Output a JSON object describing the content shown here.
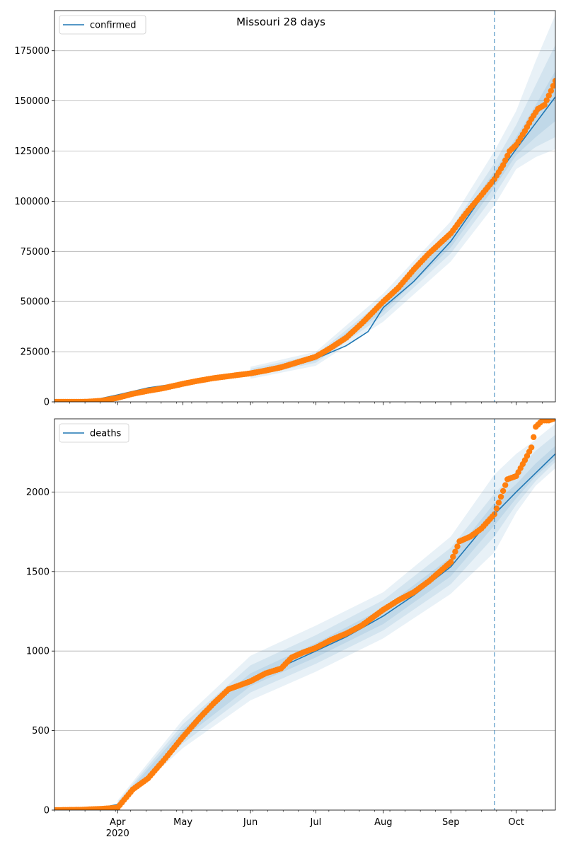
{
  "title": "Missouri 28 days",
  "colors": {
    "model_line": "#1f77b4",
    "observed": "#ff7f0e",
    "band": "#1f77b4",
    "grid": "#b0b0b0",
    "forecast_line": "#1f77b4"
  },
  "x_ticks": [
    {
      "date": "2020-04-01",
      "label": "Apr",
      "sub": "2020"
    },
    {
      "date": "2020-05-01",
      "label": "May",
      "sub": ""
    },
    {
      "date": "2020-06-01",
      "label": "Jun",
      "sub": ""
    },
    {
      "date": "2020-07-01",
      "label": "Jul",
      "sub": ""
    },
    {
      "date": "2020-08-01",
      "label": "Aug",
      "sub": ""
    },
    {
      "date": "2020-09-01",
      "label": "Sep",
      "sub": ""
    },
    {
      "date": "2020-10-01",
      "label": "Oct",
      "sub": ""
    }
  ],
  "chart_data": [
    {
      "type": "line",
      "legend": "confirmed",
      "legend_position": "top-left",
      "grid": "y",
      "xlim": [
        "2020-03-03",
        "2020-10-19"
      ],
      "ylim": [
        0,
        195000
      ],
      "yticks": [
        0,
        25000,
        50000,
        75000,
        100000,
        125000,
        150000,
        175000
      ],
      "forecast_start": "2020-09-21",
      "model": {
        "x": [
          "2020-03-03",
          "2020-03-20",
          "2020-04-01",
          "2020-04-15",
          "2020-05-01",
          "2020-05-15",
          "2020-06-01",
          "2020-06-15",
          "2020-07-01",
          "2020-07-15",
          "2020-07-25",
          "2020-08-01",
          "2020-08-15",
          "2020-09-01",
          "2020-09-10",
          "2020-09-21",
          "2020-10-01",
          "2020-10-10",
          "2020-10-19"
        ],
        "y": [
          0,
          700,
          3500,
          7000,
          9500,
          12000,
          14500,
          17000,
          21500,
          28000,
          35000,
          47000,
          60000,
          80000,
          94000,
          111000,
          126000,
          139000,
          152000
        ]
      },
      "bands": [
        {
          "x": [
            "2020-06-01",
            "2020-07-01",
            "2020-08-01",
            "2020-09-01",
            "2020-09-21",
            "2020-10-01",
            "2020-10-10",
            "2020-10-19"
          ],
          "lower": [
            11500,
            18000,
            40000,
            70000,
            98000,
            116000,
            122000,
            126000
          ],
          "upper": [
            17500,
            25000,
            54000,
            90000,
            125000,
            145000,
            170000,
            193000
          ]
        },
        {
          "x": [
            "2020-06-01",
            "2020-07-01",
            "2020-08-01",
            "2020-09-01",
            "2020-09-21",
            "2020-10-01",
            "2020-10-10",
            "2020-10-19"
          ],
          "lower": [
            12500,
            19500,
            43000,
            74000,
            103000,
            120000,
            127000,
            132000
          ],
          "upper": [
            16500,
            23500,
            51000,
            86000,
            119000,
            138000,
            158000,
            178000
          ]
        },
        {
          "x": [
            "2020-06-01",
            "2020-07-01",
            "2020-08-01",
            "2020-09-01",
            "2020-09-21",
            "2020-10-01",
            "2020-10-10",
            "2020-10-19"
          ],
          "lower": [
            13500,
            20500,
            45000,
            77000,
            107000,
            123000,
            132000,
            140000
          ],
          "upper": [
            15500,
            22500,
            49000,
            83000,
            115000,
            132000,
            148000,
            165000
          ]
        }
      ],
      "observed": {
        "x": [
          "2020-03-03",
          "2020-03-10",
          "2020-03-18",
          "2020-03-25",
          "2020-04-01",
          "2020-04-08",
          "2020-04-15",
          "2020-04-22",
          "2020-05-01",
          "2020-05-08",
          "2020-05-15",
          "2020-05-22",
          "2020-06-01",
          "2020-06-08",
          "2020-06-15",
          "2020-06-22",
          "2020-07-01",
          "2020-07-08",
          "2020-07-15",
          "2020-07-22",
          "2020-08-01",
          "2020-08-08",
          "2020-08-15",
          "2020-08-22",
          "2020-09-01",
          "2020-09-08",
          "2020-09-15",
          "2020-09-21",
          "2020-09-25",
          "2020-09-28",
          "2020-10-01",
          "2020-10-05",
          "2020-10-08",
          "2020-10-11",
          "2020-10-14",
          "2020-10-17",
          "2020-10-19"
        ],
        "y": [
          0,
          0,
          50,
          600,
          2000,
          4000,
          5500,
          6800,
          9000,
          10500,
          11800,
          12800,
          14200,
          15600,
          17200,
          19500,
          22500,
          27000,
          32000,
          39000,
          50000,
          57000,
          66000,
          74000,
          84000,
          94000,
          103000,
          111000,
          118000,
          125000,
          128000,
          135000,
          141000,
          146000,
          148000,
          155000,
          160000
        ]
      }
    },
    {
      "type": "line",
      "legend": "deaths",
      "legend_position": "top-left",
      "grid": "y",
      "xlim": [
        "2020-03-03",
        "2020-10-19"
      ],
      "ylim": [
        0,
        2460
      ],
      "yticks": [
        0,
        500,
        1000,
        1500,
        2000
      ],
      "forecast_start": "2020-09-21",
      "model": {
        "x": [
          "2020-03-03",
          "2020-03-20",
          "2020-04-01",
          "2020-04-10",
          "2020-04-20",
          "2020-05-01",
          "2020-05-10",
          "2020-05-20",
          "2020-06-01",
          "2020-06-15",
          "2020-07-01",
          "2020-07-15",
          "2020-08-01",
          "2020-08-15",
          "2020-09-01",
          "2020-09-21",
          "2020-10-01",
          "2020-10-10",
          "2020-10-19"
        ],
        "y": [
          0,
          5,
          35,
          140,
          290,
          480,
          620,
          730,
          820,
          900,
          1000,
          1090,
          1220,
          1350,
          1530,
          1860,
          2000,
          2120,
          2240
        ]
      },
      "bands": [
        {
          "x": [
            "2020-04-01",
            "2020-05-01",
            "2020-06-01",
            "2020-07-01",
            "2020-08-01",
            "2020-09-01",
            "2020-09-21",
            "2020-10-01",
            "2020-10-10",
            "2020-10-19"
          ],
          "lower": [
            20,
            390,
            690,
            870,
            1080,
            1360,
            1620,
            1870,
            2040,
            2150
          ],
          "upper": [
            60,
            570,
            970,
            1160,
            1370,
            1720,
            2110,
            2240,
            2330,
            2430
          ]
        },
        {
          "x": [
            "2020-04-01",
            "2020-05-01",
            "2020-06-01",
            "2020-07-01",
            "2020-08-01",
            "2020-09-01",
            "2020-09-21",
            "2020-10-01",
            "2020-10-10",
            "2020-10-19"
          ],
          "lower": [
            25,
            420,
            740,
            920,
            1130,
            1420,
            1720,
            1920,
            2070,
            2190
          ],
          "upper": [
            50,
            540,
            910,
            1100,
            1320,
            1650,
            1990,
            2130,
            2260,
            2360
          ]
        },
        {
          "x": [
            "2020-04-01",
            "2020-05-01",
            "2020-06-01",
            "2020-07-01",
            "2020-08-01",
            "2020-09-01",
            "2020-09-21",
            "2020-10-01",
            "2020-10-10",
            "2020-10-19"
          ],
          "lower": [
            30,
            450,
            780,
            960,
            1170,
            1470,
            1790,
            1960,
            2100,
            2210
          ],
          "upper": [
            42,
            510,
            860,
            1050,
            1270,
            1590,
            1930,
            2050,
            2180,
            2290
          ]
        }
      ],
      "observed": {
        "x": [
          "2020-03-03",
          "2020-03-15",
          "2020-03-25",
          "2020-04-01",
          "2020-04-08",
          "2020-04-15",
          "2020-04-22",
          "2020-05-01",
          "2020-05-08",
          "2020-05-15",
          "2020-05-22",
          "2020-06-01",
          "2020-06-08",
          "2020-06-15",
          "2020-06-20",
          "2020-06-25",
          "2020-07-01",
          "2020-07-08",
          "2020-07-15",
          "2020-07-22",
          "2020-08-01",
          "2020-08-08",
          "2020-08-15",
          "2020-08-22",
          "2020-09-01",
          "2020-09-05",
          "2020-09-10",
          "2020-09-15",
          "2020-09-21",
          "2020-09-24",
          "2020-09-27",
          "2020-10-01",
          "2020-10-05",
          "2020-10-08",
          "2020-10-10",
          "2020-10-13",
          "2020-10-16",
          "2020-10-18"
        ],
        "y": [
          0,
          2,
          8,
          15,
          130,
          200,
          310,
          460,
          570,
          670,
          760,
          810,
          860,
          890,
          960,
          990,
          1020,
          1070,
          1110,
          1160,
          1260,
          1320,
          1370,
          1440,
          1560,
          1690,
          1720,
          1770,
          1860,
          1970,
          2080,
          2100,
          2200,
          2280,
          2410,
          2450,
          2450,
          2460
        ]
      }
    }
  ]
}
